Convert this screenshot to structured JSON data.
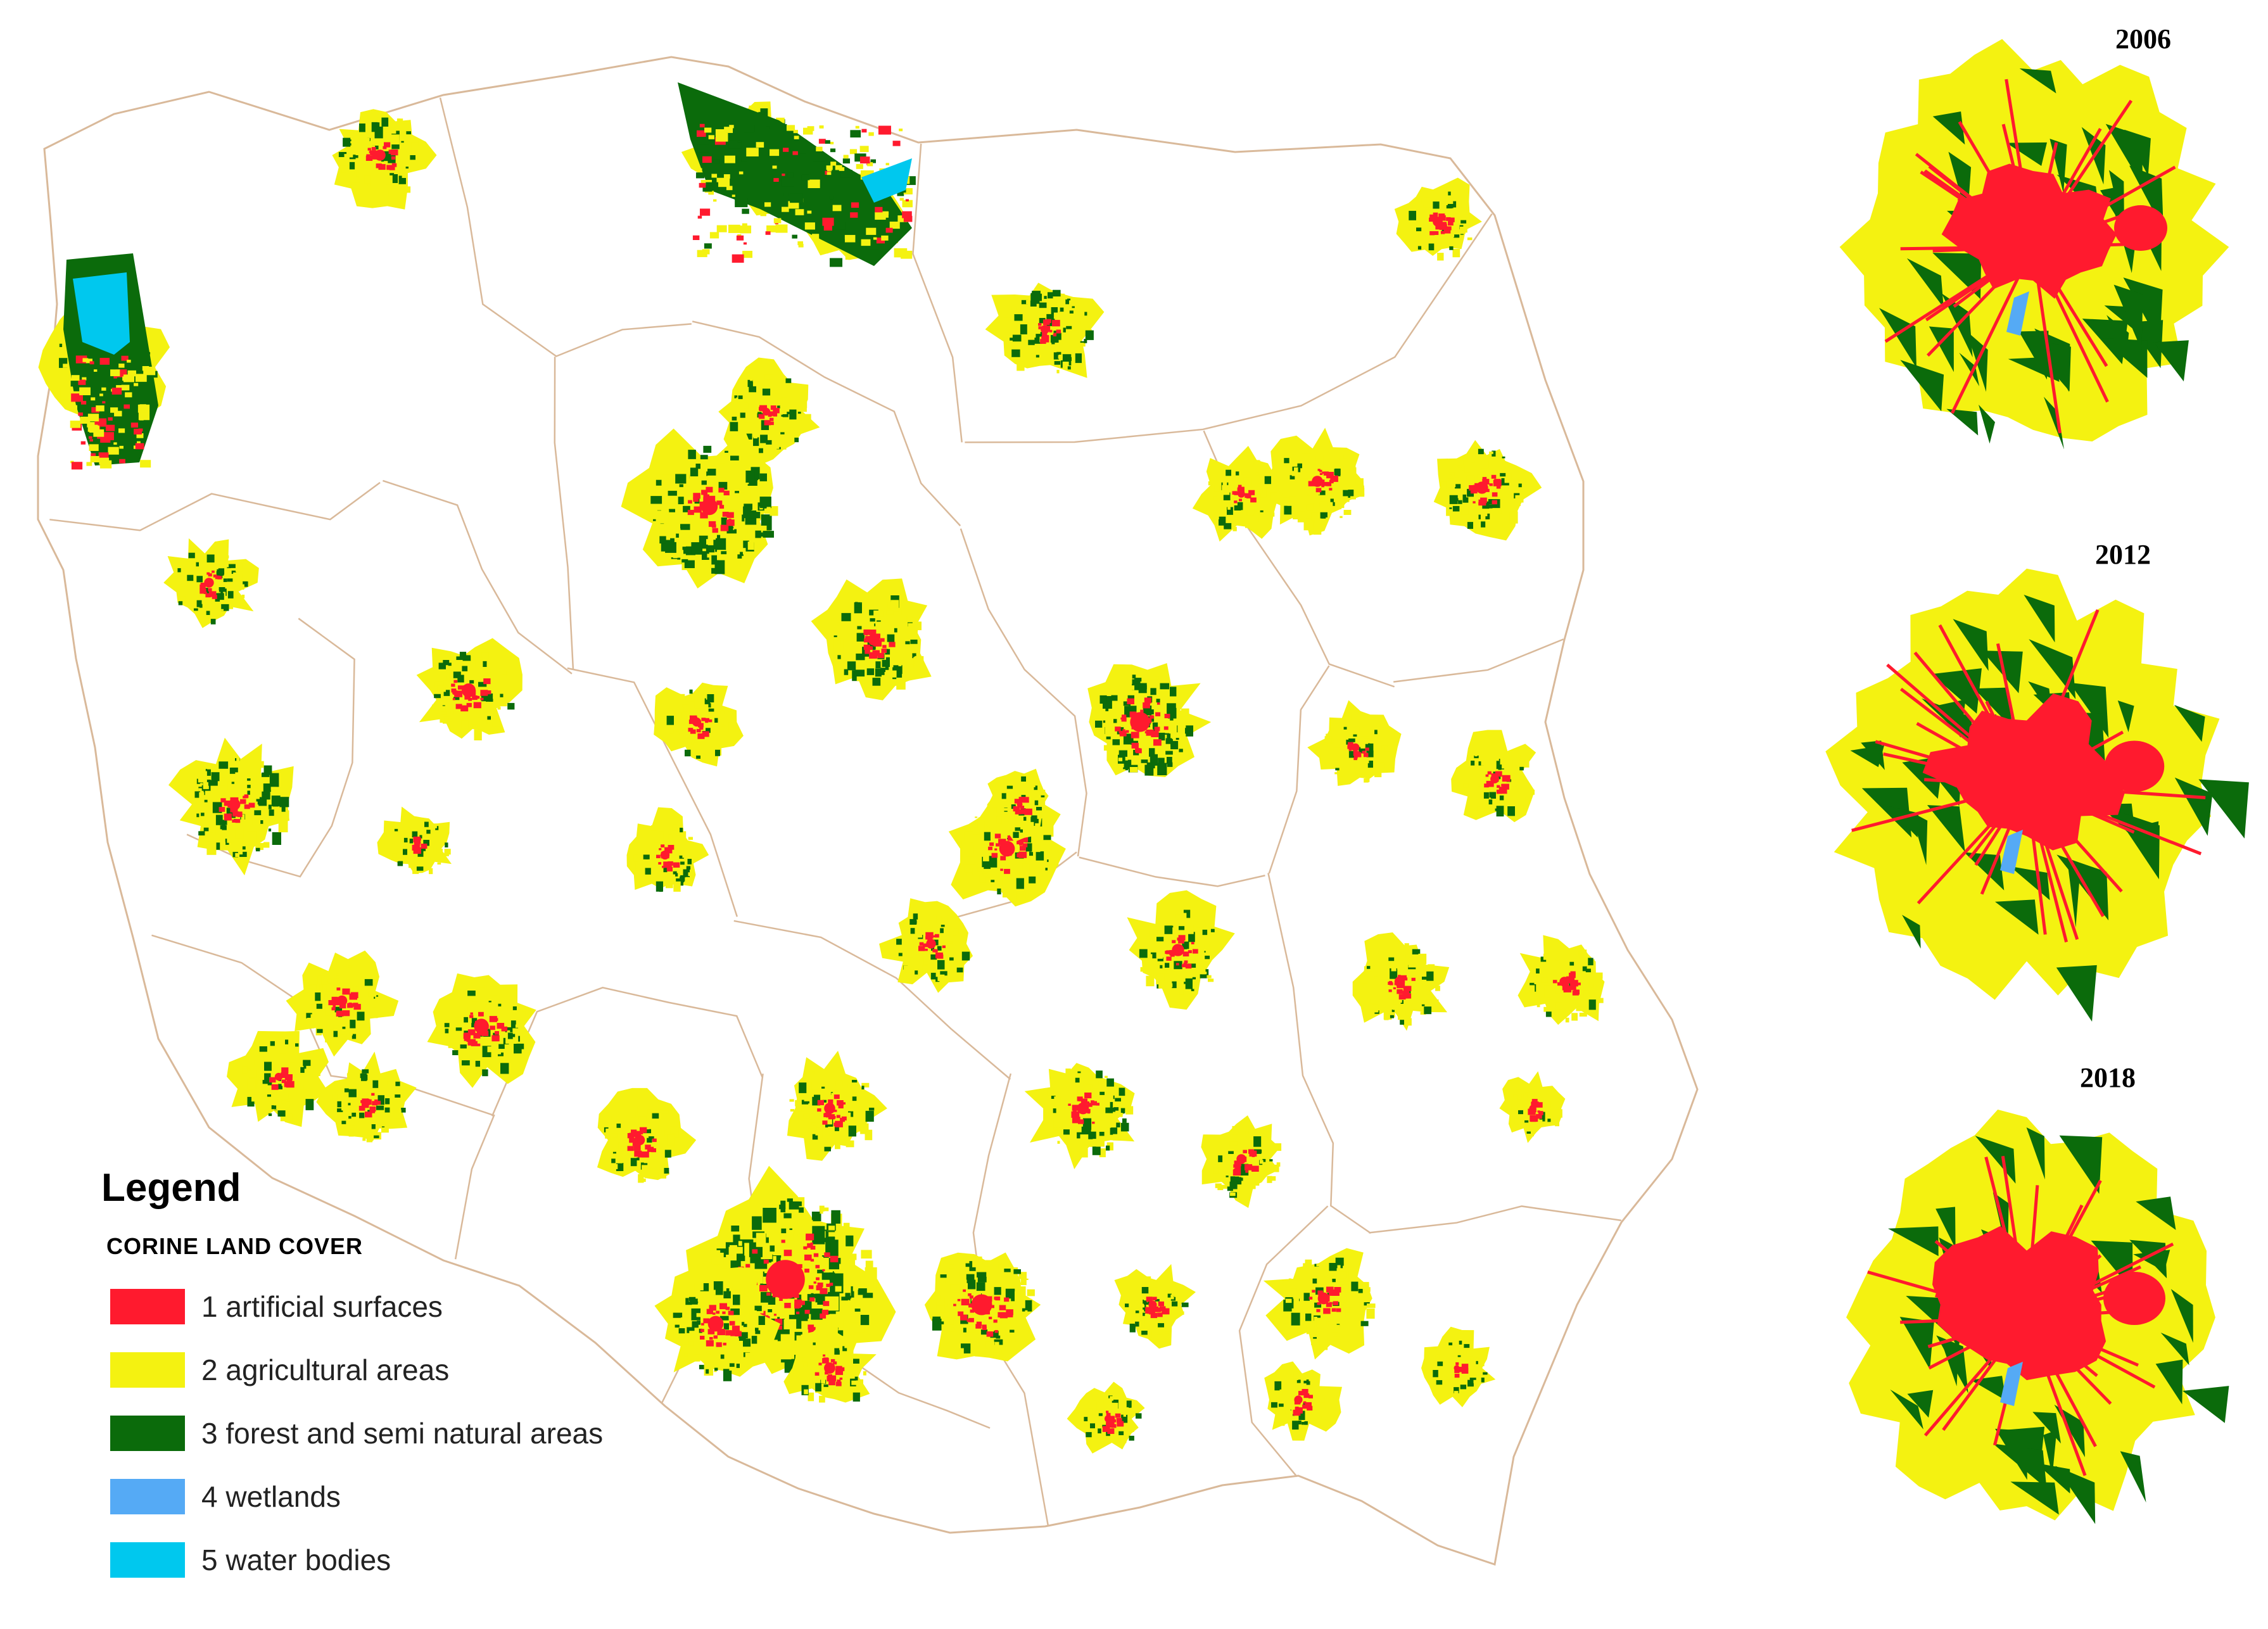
{
  "legend": {
    "title": "Legend",
    "subtitle": "CORINE LAND COVER",
    "items": [
      {
        "label": "1 artificial surfaces",
        "color": "#ff1a2e"
      },
      {
        "label": "2 agricultural areas",
        "color": "#f4f211"
      },
      {
        "label": "3 forest and semi natural areas",
        "color": "#0b6b0b"
      },
      {
        "label": "4 wetlands",
        "color": "#55aaf5"
      },
      {
        "label": "5 water bodies",
        "color": "#00c8ee"
      }
    ]
  },
  "insets": [
    {
      "year": "2006"
    },
    {
      "year": "2012"
    },
    {
      "year": "2018"
    }
  ],
  "colors": {
    "border": "#d9b99a",
    "artificial": "#ff1a2e",
    "agricultural": "#f4f211",
    "forest": "#0b6b0b",
    "wetland": "#55aaf5",
    "water": "#00c8ee"
  }
}
